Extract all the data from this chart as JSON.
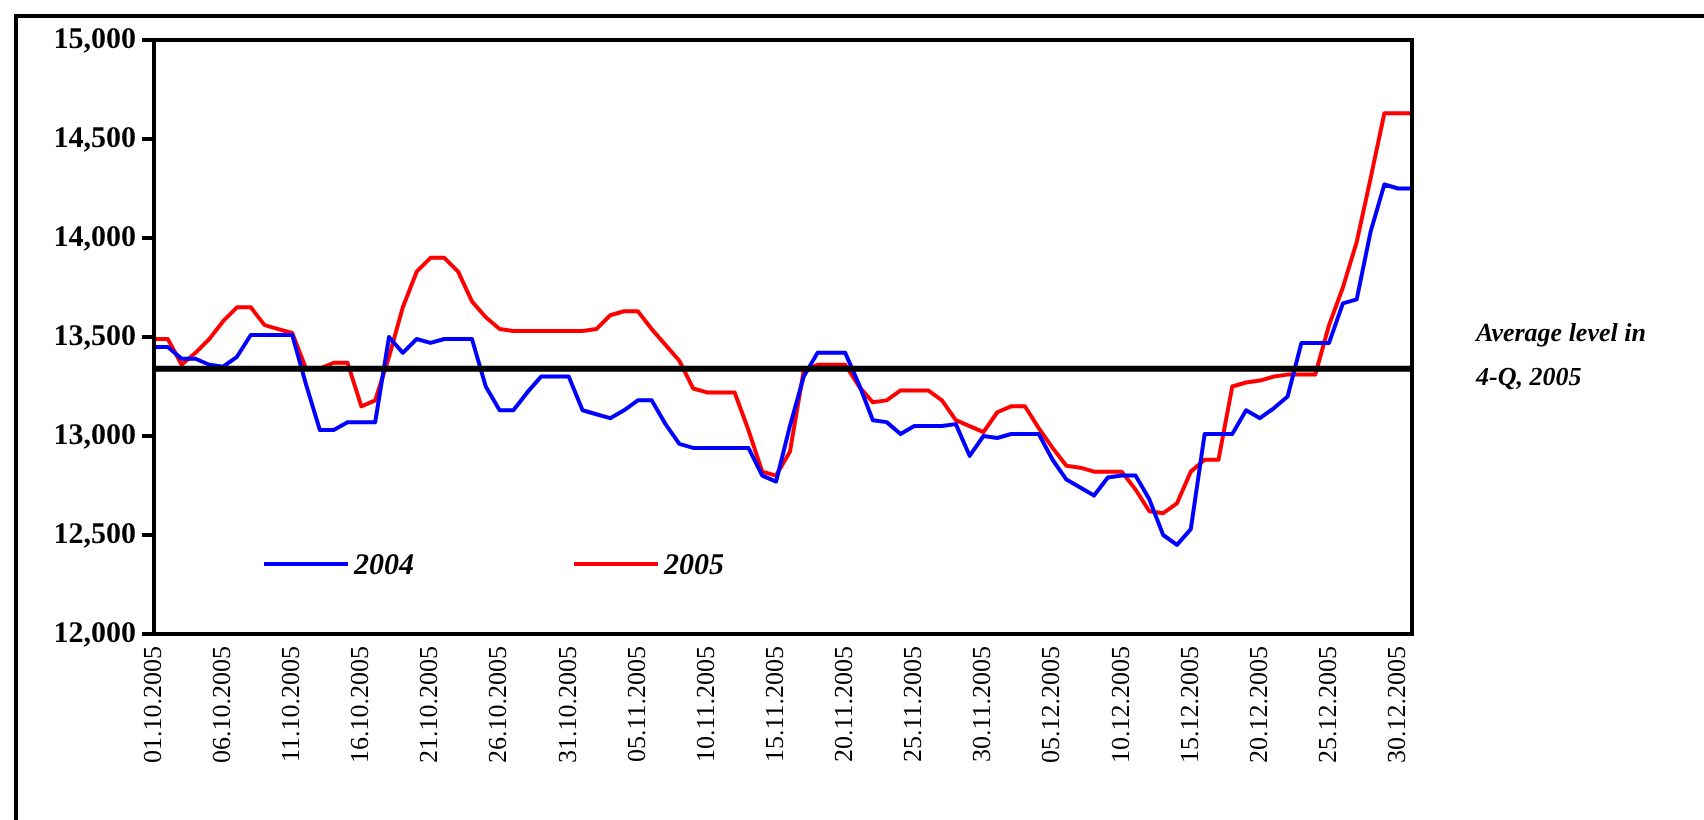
{
  "chart_data": {
    "type": "line",
    "categories": [
      "01.10.2005",
      null,
      null,
      null,
      null,
      "06.10.2005",
      null,
      null,
      null,
      null,
      "11.10.2005",
      null,
      null,
      null,
      null,
      "16.10.2005",
      null,
      null,
      null,
      null,
      "21.10.2005",
      null,
      null,
      null,
      null,
      "26.10.2005",
      null,
      null,
      null,
      null,
      "31.10.2005",
      null,
      null,
      null,
      null,
      "05.11.2005",
      null,
      null,
      null,
      null,
      "10.11.2005",
      null,
      null,
      null,
      null,
      "15.11.2005",
      null,
      null,
      null,
      null,
      "20.11.2005",
      null,
      null,
      null,
      null,
      "25.11.2005",
      null,
      null,
      null,
      null,
      "30.11.2005",
      null,
      null,
      null,
      null,
      "05.12.2005",
      null,
      null,
      null,
      null,
      "10.12.2005",
      null,
      null,
      null,
      null,
      "15.12.2005",
      null,
      null,
      null,
      null,
      "20.12.2005",
      null,
      null,
      null,
      null,
      "25.12.2005",
      null,
      null,
      null,
      null,
      "30.12.2005",
      null
    ],
    "series": [
      {
        "name": "2004",
        "color": "#0000ff",
        "values": [
          13450,
          13450,
          13390,
          13390,
          13360,
          13350,
          13400,
          13510,
          13510,
          13510,
          13510,
          13260,
          13030,
          13030,
          13070,
          13070,
          13070,
          13500,
          13420,
          13490,
          13470,
          13490,
          13490,
          13490,
          13250,
          13130,
          13130,
          13220,
          13300,
          13300,
          13300,
          13130,
          13110,
          13090,
          13130,
          13180,
          13180,
          13060,
          12960,
          12940,
          12940,
          12940,
          12940,
          12940,
          12800,
          12770,
          13050,
          13300,
          13420,
          13420,
          13420,
          13260,
          13080,
          13070,
          13010,
          13050,
          13050,
          13050,
          13060,
          12900,
          13000,
          12990,
          13010,
          13010,
          13010,
          12880,
          12780,
          12740,
          12700,
          12790,
          12800,
          12800,
          12680,
          12500,
          12450,
          12530,
          13010,
          13010,
          13010,
          13130,
          13090,
          13140,
          13200,
          13470,
          13470,
          13470,
          13670,
          13690,
          14030,
          14270,
          14250,
          14250
        ]
      },
      {
        "name": "2005",
        "color": "#ff0000",
        "values": [
          13490,
          13490,
          13360,
          13420,
          13490,
          13580,
          13650,
          13650,
          13560,
          13540,
          13520,
          13340,
          13340,
          13370,
          13370,
          13150,
          13180,
          13400,
          13650,
          13830,
          13900,
          13900,
          13830,
          13680,
          13600,
          13540,
          13530,
          13530,
          13530,
          13530,
          13530,
          13530,
          13540,
          13610,
          13630,
          13630,
          13540,
          13460,
          13380,
          13240,
          13220,
          13220,
          13220,
          13030,
          12820,
          12800,
          12920,
          13330,
          13360,
          13360,
          13360,
          13250,
          13170,
          13180,
          13230,
          13230,
          13230,
          13180,
          13080,
          13050,
          13020,
          13120,
          13150,
          13150,
          13040,
          12940,
          12850,
          12840,
          12820,
          12820,
          12820,
          12730,
          12620,
          12610,
          12660,
          12820,
          12880,
          12880,
          13250,
          13270,
          13280,
          13300,
          13310,
          13310,
          13310,
          13560,
          13750,
          13980,
          14300,
          14630,
          14630,
          14630
        ]
      }
    ],
    "ylim": [
      12000,
      15000
    ],
    "yticks": [
      {
        "value": 12000,
        "label": "12,000"
      },
      {
        "value": 12500,
        "label": "12,500"
      },
      {
        "value": 13000,
        "label": "13,000"
      },
      {
        "value": 13500,
        "label": "13,500"
      },
      {
        "value": 14000,
        "label": "14,000"
      },
      {
        "value": 14500,
        "label": "14,500"
      },
      {
        "value": 15000,
        "label": "15,000"
      }
    ],
    "ref_lines": [
      {
        "axis": "y",
        "value": 13340,
        "label": "Average level in 4-Q, 2005",
        "color": "#000000"
      }
    ],
    "legend": "bottom left",
    "grid": false
  }
}
